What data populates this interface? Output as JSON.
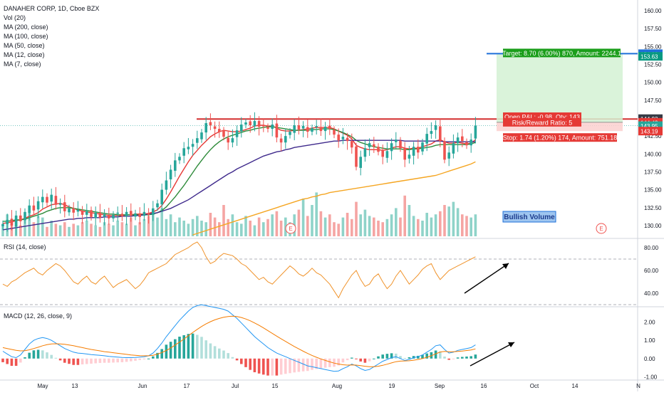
{
  "header": {
    "title": "DANAHER CORP, 1D, Cboe BZX",
    "indicators": [
      "Vol (20)",
      "MA (200, close)",
      "MA (100, close)",
      "MA (50, close)",
      "MA (12, close)",
      "MA (7, close)"
    ]
  },
  "rsi_label": "RSI (14, close)",
  "macd_label": "MACD (12, 26, close, 9)",
  "bullish_volume_label": "Bullish Volume",
  "earnings_marker": "E",
  "trade": {
    "target_text": "Target: 8.70 (6.00%) 870, Amount: 2244.1",
    "pnl_text": "Open P&L: -0.98, Qty: 143",
    "rr_text": "Risk/Reward Ratio: 5",
    "stop_text": "Stop: 1.74 (1.20%) 174, Amount: 751.18"
  },
  "price_tags": [
    {
      "label": "154.00",
      "value": 154.0,
      "color": "#1e6fd9"
    },
    {
      "label": "153.63",
      "value": 153.63,
      "color": "#089981"
    },
    {
      "label": "144.93",
      "value": 144.93,
      "color": "#363a45"
    },
    {
      "label": "144.42",
      "value": 144.42,
      "color": "#e53935"
    },
    {
      "label": "143.95",
      "value": 143.95,
      "color": "#26a69a"
    },
    {
      "label": "143.19",
      "value": 143.19,
      "color": "#e53935"
    }
  ],
  "colors": {
    "up": "#26a69a",
    "down": "#ef5350",
    "ma7": "#e53935",
    "ma12": "#2e8b3a",
    "ma50": "#3f2a8c",
    "ma200": "#f5a623",
    "rsi": "#f0932b",
    "macd": "#2196f3",
    "signal": "#f57c00",
    "resistance": "#d32f2f"
  },
  "chart_data": [
    {
      "type": "candlestick",
      "title": "DANAHER CORP, 1D, Cboe BZX",
      "ylim": [
        128.5,
        161
      ],
      "y_ticks": [
        "160.00",
        "157.50",
        "155.00",
        "152.50",
        "150.00",
        "147.50",
        "145.00",
        "142.50",
        "140.00",
        "137.50",
        "135.00",
        "132.50",
        "130.00"
      ],
      "x_ticks": [
        "May",
        "13",
        "Jun",
        "17",
        "Jul",
        "15",
        "Aug",
        "19",
        "Sep",
        "16",
        "Oct",
        "14",
        "N"
      ],
      "annotations": [
        "Bullish Volume"
      ],
      "resistance_level": 144.93,
      "closes": [
        130.2,
        130.8,
        130.0,
        131.4,
        130.6,
        131.9,
        132.8,
        132.1,
        133.4,
        134.0,
        133.2,
        134.3,
        132.9,
        133.1,
        132.0,
        132.4,
        131.8,
        132.2,
        131.5,
        132.0,
        131.2,
        131.8,
        131.1,
        131.6,
        131.0,
        131.5,
        131.8,
        131.3,
        131.9,
        131.4,
        131.7,
        131.2,
        131.9,
        131.5,
        132.4,
        133.1,
        135.0,
        136.3,
        137.8,
        139.1,
        139.6,
        140.8,
        141.0,
        141.4,
        142.2,
        143.0,
        144.3,
        144.0,
        143.5,
        143.1,
        142.4,
        141.6,
        142.2,
        143.3,
        144.1,
        144.4,
        144.0,
        144.6,
        143.8,
        143.9,
        143.5,
        144.1,
        142.3,
        141.6,
        142.5,
        143.1,
        144.0,
        143.4,
        143.9,
        143.1,
        143.6,
        143.9,
        143.2,
        143.8,
        143.5,
        142.7,
        141.9,
        142.4,
        141.8,
        140.9,
        138.2,
        139.6,
        140.8,
        141.5,
        141.0,
        140.3,
        139.6,
        140.4,
        141.5,
        142.0,
        140.8,
        139.2,
        139.9,
        141.0,
        140.2,
        141.6,
        142.8,
        143.2,
        144.0,
        141.8,
        139.2,
        140.2,
        141.5,
        142.3,
        141.8,
        141.2,
        142.0,
        143.95
      ],
      "series": [
        {
          "name": "MA (7, close)",
          "values": [
            130.3,
            130.4,
            130.5,
            130.7,
            130.8,
            131.0,
            131.3,
            131.5,
            131.8,
            132.3,
            132.6,
            132.9,
            133.0,
            133.1,
            132.9,
            132.6,
            132.4,
            132.2,
            132.0,
            131.9,
            131.8,
            131.7,
            131.6,
            131.5,
            131.4,
            131.4,
            131.4,
            131.4,
            131.5,
            131.5,
            131.6,
            131.6,
            131.6,
            131.7,
            131.9,
            132.2,
            132.8,
            133.7,
            134.7,
            135.8,
            136.9,
            137.9,
            138.9,
            139.8,
            140.5,
            141.2,
            141.8,
            142.4,
            142.8,
            143.1,
            143.3,
            143.2,
            143.1,
            143.1,
            143.2,
            143.4,
            143.6,
            143.9,
            144.0,
            144.0,
            143.9,
            143.9,
            143.6,
            143.3,
            143.2,
            143.2,
            143.3,
            143.3,
            143.4,
            143.5,
            143.6,
            143.7,
            143.7,
            143.7,
            143.7,
            143.5,
            143.2,
            142.9,
            142.6,
            142.1,
            141.2,
            140.9,
            140.7,
            140.6,
            140.6,
            140.6,
            140.5,
            140.6,
            140.8,
            141.0,
            141.0,
            140.8,
            140.7,
            140.8,
            140.8,
            141.0,
            141.2,
            141.4,
            141.8,
            142.0,
            141.7,
            141.5,
            141.5,
            141.6,
            141.5,
            141.4,
            141.5,
            142.0
          ]
        },
        {
          "name": "MA (12, close)",
          "values": [
            130.6,
            130.6,
            130.7,
            130.8,
            130.8,
            130.9,
            131.1,
            131.3,
            131.5,
            131.7,
            132.0,
            132.2,
            132.4,
            132.5,
            132.5,
            132.5,
            132.4,
            132.3,
            132.2,
            132.1,
            132.0,
            131.9,
            131.8,
            131.7,
            131.6,
            131.6,
            131.5,
            131.5,
            131.5,
            131.5,
            131.5,
            131.5,
            131.5,
            131.5,
            131.6,
            131.8,
            132.1,
            132.6,
            133.3,
            134.0,
            134.8,
            135.6,
            136.5,
            137.4,
            138.3,
            139.1,
            139.9,
            140.6,
            141.2,
            141.7,
            142.1,
            142.4,
            142.6,
            142.8,
            143.0,
            143.2,
            143.3,
            143.5,
            143.6,
            143.7,
            143.8,
            143.8,
            143.7,
            143.6,
            143.5,
            143.4,
            143.3,
            143.3,
            143.3,
            143.3,
            143.4,
            143.4,
            143.5,
            143.5,
            143.5,
            143.4,
            143.2,
            143.0,
            142.7,
            142.4,
            141.9,
            141.6,
            141.4,
            141.2,
            141.0,
            140.9,
            140.8,
            140.7,
            140.7,
            140.7,
            140.7,
            140.6,
            140.6,
            140.7,
            140.7,
            140.8,
            140.9,
            141.0,
            141.2,
            141.3,
            141.3,
            141.3,
            141.3,
            141.3,
            141.3,
            141.3,
            141.4,
            141.6
          ]
        },
        {
          "name": "MA (50, close)",
          "values": [
            129.4,
            129.5,
            129.6,
            129.7,
            129.8,
            129.9,
            130.0,
            130.1,
            130.2,
            130.3,
            130.4,
            130.5,
            130.6,
            130.7,
            130.8,
            130.9,
            130.9,
            131.0,
            131.0,
            131.1,
            131.1,
            131.1,
            131.1,
            131.2,
            131.2,
            131.2,
            131.2,
            131.3,
            131.3,
            131.3,
            131.4,
            131.4,
            131.5,
            131.6,
            131.7,
            131.8,
            132.0,
            132.2,
            132.4,
            132.7,
            133.0,
            133.3,
            133.6,
            134.0,
            134.4,
            134.8,
            135.2,
            135.6,
            136.0,
            136.4,
            136.8,
            137.2,
            137.5,
            137.9,
            138.2,
            138.5,
            138.8,
            139.1,
            139.4,
            139.7,
            139.9,
            140.1,
            140.3,
            140.4,
            140.6,
            140.7,
            140.9,
            141.0,
            141.1,
            141.2,
            141.3,
            141.4,
            141.5,
            141.6,
            141.7,
            141.8,
            141.8,
            141.9,
            141.9,
            141.9,
            141.9,
            141.9,
            141.9,
            141.9,
            141.9,
            141.9,
            141.9,
            141.9,
            141.9,
            141.9,
            141.9,
            141.8,
            141.8,
            141.8,
            141.8,
            141.8,
            141.8,
            141.8,
            141.8,
            141.8,
            141.7,
            141.7,
            141.7,
            141.7,
            141.7,
            141.7,
            141.7,
            141.7
          ]
        },
        {
          "name": "MA (200, close)",
          "values": [
            null,
            null,
            null,
            null,
            null,
            null,
            null,
            null,
            null,
            null,
            null,
            null,
            null,
            null,
            null,
            null,
            null,
            null,
            null,
            null,
            null,
            null,
            null,
            null,
            null,
            null,
            null,
            null,
            null,
            null,
            null,
            null,
            null,
            null,
            null,
            null,
            null,
            null,
            null,
            null,
            null,
            null,
            null,
            128.7,
            128.9,
            129.1,
            129.3,
            129.5,
            129.7,
            129.9,
            130.1,
            130.3,
            130.5,
            130.7,
            130.9,
            131.1,
            131.3,
            131.5,
            131.7,
            131.9,
            132.1,
            132.3,
            132.5,
            132.7,
            132.9,
            133.1,
            133.3,
            133.5,
            133.7,
            133.8,
            134.0,
            134.1,
            134.3,
            134.4,
            134.6,
            134.7,
            134.8,
            134.9,
            135.0,
            135.1,
            135.2,
            135.3,
            135.4,
            135.5,
            135.6,
            135.7,
            135.8,
            135.9,
            136.0,
            136.1,
            136.2,
            136.3,
            136.4,
            136.5,
            136.6,
            136.7,
            136.8,
            136.9,
            137.0,
            137.2,
            137.4,
            137.6,
            137.8,
            138.0,
            138.2,
            138.4,
            138.6,
            138.9
          ]
        }
      ],
      "trade_target": 154.0,
      "trade_entry": 144.42,
      "trade_stop": 143.19
    },
    {
      "type": "line",
      "title": "RSI (14, close)",
      "ylim": [
        30,
        85
      ],
      "y_ticks": [
        "80.00",
        "60.00",
        "40.00"
      ],
      "levels": [
        70,
        30
      ],
      "series": [
        {
          "name": "RSI (14, close)",
          "values": [
            48,
            46,
            50,
            52,
            55,
            58,
            60,
            62,
            58,
            56,
            60,
            63,
            66,
            64,
            60,
            55,
            50,
            48,
            52,
            55,
            50,
            48,
            52,
            55,
            50,
            45,
            48,
            50,
            52,
            48,
            44,
            47,
            52,
            58,
            60,
            62,
            64,
            66,
            70,
            74,
            76,
            78,
            80,
            83,
            85,
            80,
            72,
            66,
            68,
            72,
            75,
            74,
            73,
            70,
            66,
            64,
            60,
            56,
            52,
            54,
            50,
            48,
            52,
            56,
            60,
            64,
            61,
            57,
            55,
            58,
            62,
            58,
            56,
            52,
            48,
            42,
            36,
            44,
            50,
            56,
            60,
            52,
            46,
            48,
            54,
            57,
            50,
            44,
            48,
            55,
            60,
            54,
            48,
            52,
            56,
            61,
            64,
            66,
            58,
            52,
            56,
            60,
            62,
            64,
            66,
            68,
            70,
            72
          ]
        }
      ]
    },
    {
      "type": "line",
      "title": "MACD (12, 26, close, 9)",
      "ylim": [
        -1.1,
        2.8
      ],
      "y_ticks": [
        "2.00",
        "1.00",
        "0.00",
        "-1.00"
      ],
      "series": [
        {
          "name": "MACD",
          "values": [
            0.4,
            0.25,
            0.1,
            0.05,
            0.2,
            0.5,
            0.8,
            1.0,
            1.1,
            1.15,
            1.1,
            1.0,
            0.85,
            0.7,
            0.55,
            0.45,
            0.35,
            0.3,
            0.28,
            0.25,
            0.22,
            0.2,
            0.18,
            0.15,
            0.12,
            0.1,
            0.08,
            0.06,
            0.05,
            0.05,
            0.06,
            0.08,
            0.1,
            0.15,
            0.3,
            0.55,
            0.85,
            1.2,
            1.5,
            1.8,
            2.1,
            2.35,
            2.6,
            2.8,
            2.9,
            2.95,
            2.9,
            2.85,
            2.8,
            2.75,
            2.7,
            2.6,
            2.4,
            2.2,
            1.95,
            1.7,
            1.45,
            1.2,
            1.0,
            0.8,
            0.6,
            0.45,
            0.3,
            0.2,
            0.1,
            0.0,
            -0.1,
            -0.2,
            -0.3,
            -0.4,
            -0.45,
            -0.5,
            -0.55,
            -0.6,
            -0.65,
            -0.7,
            -0.68,
            -0.55,
            -0.45,
            -0.3,
            -0.4,
            -0.55,
            -0.65,
            -0.6,
            -0.45,
            -0.3,
            -0.15,
            -0.05,
            0.05,
            0.1,
            0.0,
            -0.1,
            -0.05,
            0.05,
            0.1,
            0.2,
            0.35,
            0.5,
            0.7,
            0.75,
            0.5,
            0.3,
            0.35,
            0.45,
            0.5,
            0.55,
            0.6,
            0.75
          ]
        },
        {
          "name": "Signal",
          "values": [
            0.6,
            0.55,
            0.5,
            0.45,
            0.42,
            0.43,
            0.48,
            0.55,
            0.62,
            0.7,
            0.76,
            0.8,
            0.81,
            0.8,
            0.78,
            0.74,
            0.7,
            0.65,
            0.6,
            0.55,
            0.5,
            0.46,
            0.42,
            0.38,
            0.35,
            0.32,
            0.29,
            0.26,
            0.23,
            0.2,
            0.18,
            0.16,
            0.15,
            0.15,
            0.18,
            0.24,
            0.33,
            0.44,
            0.58,
            0.74,
            0.9,
            1.07,
            1.25,
            1.43,
            1.6,
            1.76,
            1.9,
            2.02,
            2.12,
            2.2,
            2.26,
            2.3,
            2.32,
            2.3,
            2.25,
            2.17,
            2.07,
            1.95,
            1.82,
            1.68,
            1.53,
            1.38,
            1.23,
            1.08,
            0.94,
            0.8,
            0.66,
            0.53,
            0.4,
            0.28,
            0.17,
            0.07,
            -0.02,
            -0.1,
            -0.18,
            -0.25,
            -0.3,
            -0.34,
            -0.36,
            -0.35,
            -0.36,
            -0.39,
            -0.42,
            -0.45,
            -0.45,
            -0.42,
            -0.37,
            -0.31,
            -0.24,
            -0.17,
            -0.14,
            -0.13,
            -0.12,
            -0.09,
            -0.05,
            0.0,
            0.07,
            0.15,
            0.26,
            0.36,
            0.39,
            0.37,
            0.37,
            0.39,
            0.41,
            0.44,
            0.47,
            0.53
          ]
        }
      ]
    }
  ]
}
